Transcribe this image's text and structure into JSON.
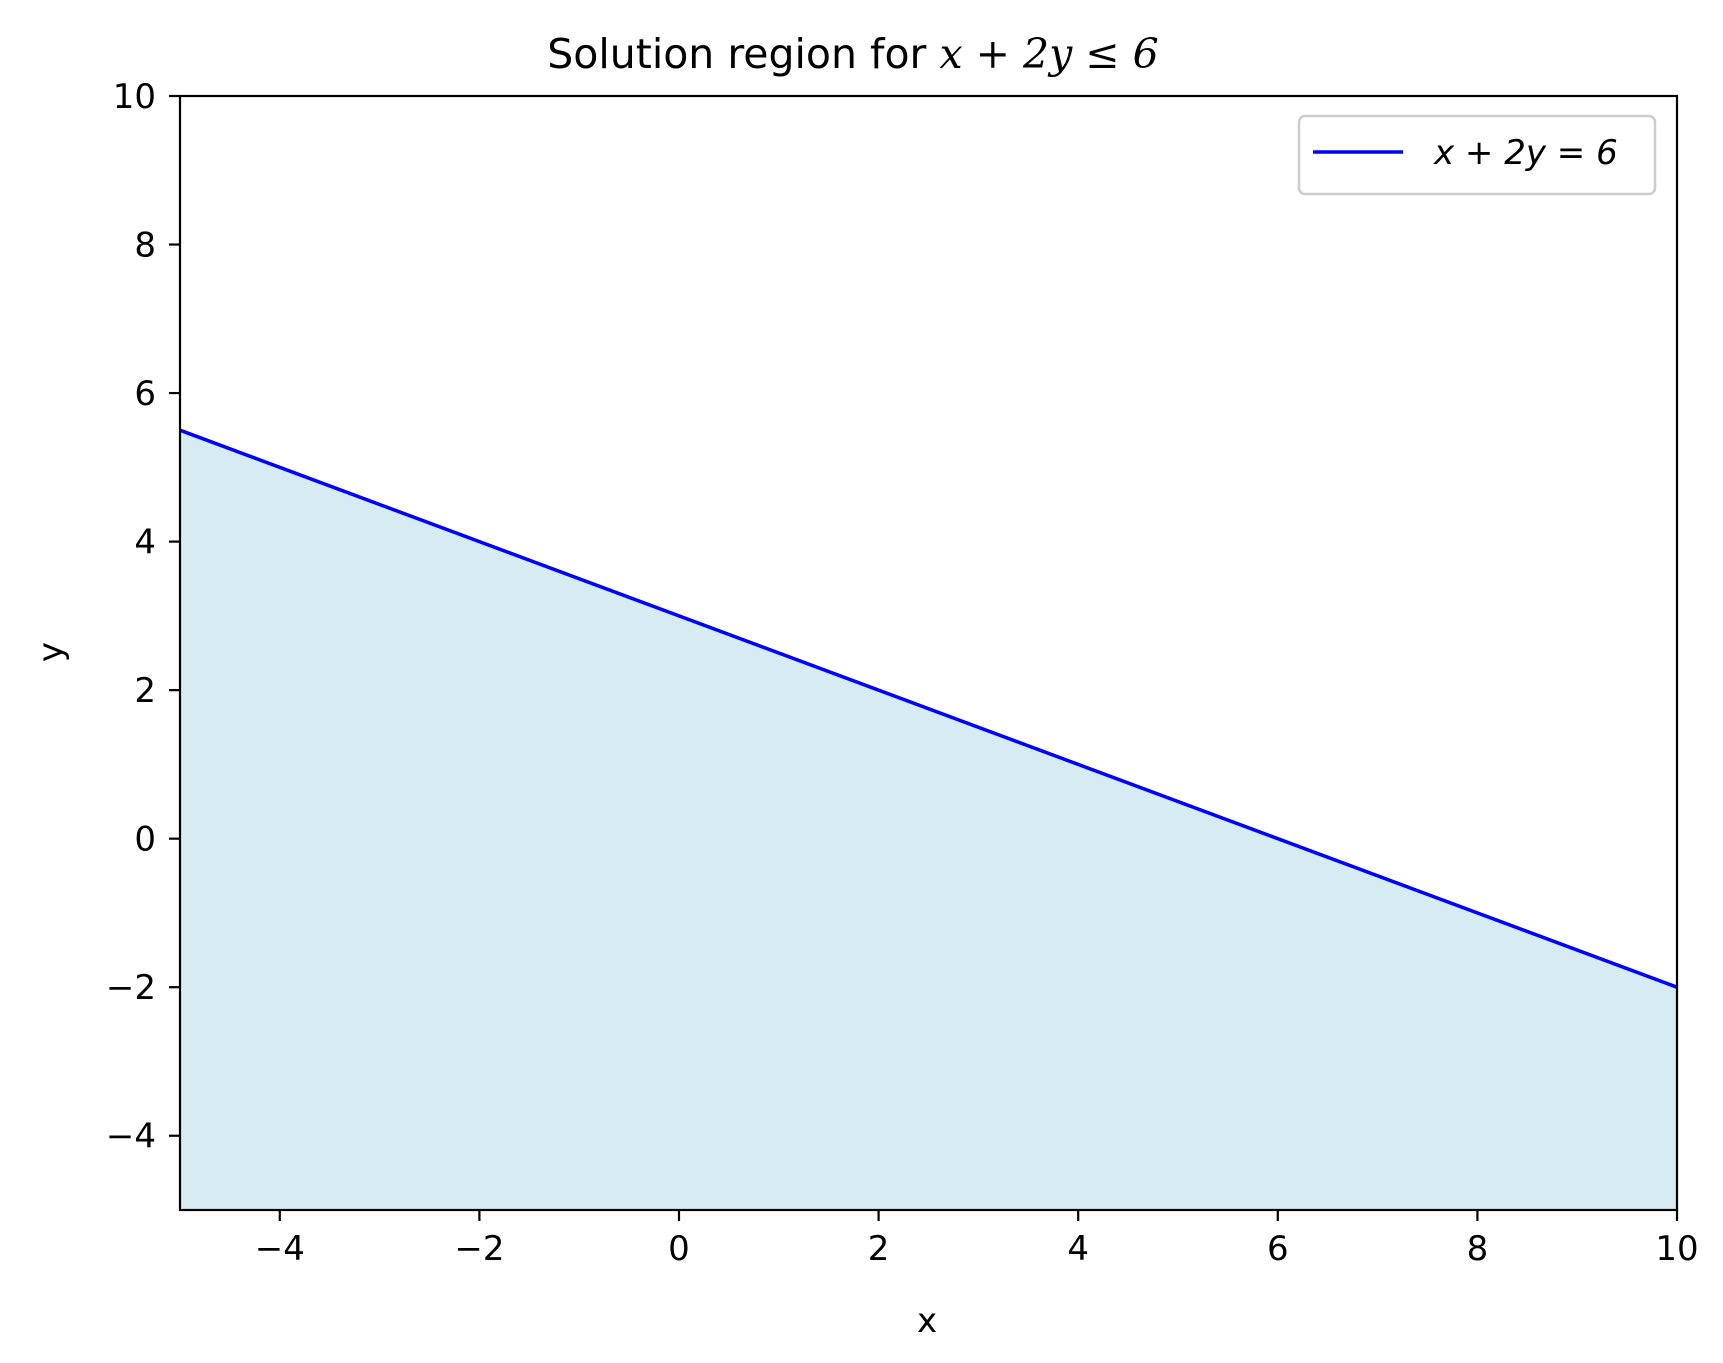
{
  "chart_data": {
    "type": "area",
    "title": "Solution region for x + 2y ≤ 6",
    "title_parts": {
      "prefix": "Solution region for ",
      "math": "x + 2y ≤ 6"
    },
    "xlabel": "x",
    "ylabel": "y",
    "xlim": [
      -5,
      10
    ],
    "ylim": [
      -5,
      10
    ],
    "x_ticks": [
      -4,
      -2,
      0,
      2,
      4,
      6,
      8,
      10
    ],
    "x_tick_labels": [
      "−4",
      "−2",
      "0",
      "2",
      "4",
      "6",
      "8",
      "10"
    ],
    "y_ticks": [
      -4,
      -2,
      0,
      2,
      4,
      6,
      8,
      10
    ],
    "y_tick_labels": [
      "−4",
      "−2",
      "0",
      "2",
      "4",
      "6",
      "8",
      "10"
    ],
    "grid": false,
    "legend_position": "top-right",
    "series": [
      {
        "name": "x + 2y = 6",
        "kind": "line",
        "color": "#0000ff",
        "x": [
          -5,
          10
        ],
        "y": [
          5.5,
          -2
        ]
      }
    ],
    "fill": {
      "description": "region below the line",
      "color": "#add8e6",
      "opacity": 0.5,
      "x": [
        -5,
        10
      ],
      "y_upper": [
        5.5,
        -2
      ],
      "y_lower": [
        -5,
        -5
      ]
    }
  }
}
